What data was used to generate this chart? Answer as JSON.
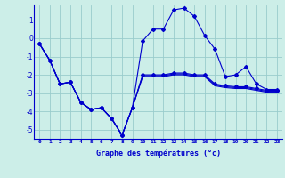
{
  "xlabel": "Graphe des températures (°c)",
  "bg_color": "#cceee8",
  "line_color": "#0000cc",
  "grid_color": "#99cccc",
  "ylim": [
    -5.5,
    1.8
  ],
  "xlim": [
    -0.5,
    23.5
  ],
  "yticks": [
    -5,
    -4,
    -3,
    -2,
    -1,
    0,
    1
  ],
  "xticks": [
    0,
    1,
    2,
    3,
    4,
    5,
    6,
    7,
    8,
    9,
    10,
    11,
    12,
    13,
    14,
    15,
    16,
    17,
    18,
    19,
    20,
    21,
    22,
    23
  ],
  "series_main_x": [
    0,
    1,
    2,
    3,
    4,
    5,
    6,
    7,
    8,
    9,
    10,
    11,
    12,
    13,
    14,
    15,
    16,
    17,
    18,
    19,
    20,
    21,
    22,
    23
  ],
  "series_main_y": [
    -0.3,
    -1.2,
    -2.5,
    -2.4,
    -3.5,
    -3.9,
    -3.8,
    -4.4,
    -5.3,
    -3.8,
    -0.15,
    0.5,
    0.5,
    1.55,
    1.65,
    1.2,
    0.15,
    -0.6,
    -2.1,
    -2.0,
    -1.55,
    -2.5,
    -2.8,
    -2.8
  ],
  "series_flat1_x": [
    0,
    1,
    2,
    3,
    4,
    5,
    6,
    7,
    8,
    9,
    10,
    11,
    12,
    13,
    14,
    15,
    16,
    17,
    18,
    19,
    20,
    21,
    22,
    23
  ],
  "series_flat1_y": [
    -0.3,
    -1.2,
    -2.5,
    -2.4,
    -3.5,
    -3.9,
    -3.8,
    -4.4,
    -5.3,
    -3.8,
    -2.0,
    -2.0,
    -2.0,
    -1.9,
    -1.9,
    -2.0,
    -2.0,
    -2.5,
    -2.6,
    -2.65,
    -2.65,
    -2.75,
    -2.85,
    -2.85
  ],
  "series_flat2_x": [
    0,
    1,
    2,
    3,
    4,
    5,
    6,
    7,
    8,
    9,
    10,
    11,
    12,
    13,
    14,
    15,
    16,
    17,
    18,
    19,
    20,
    21,
    22,
    23
  ],
  "series_flat2_y": [
    -0.3,
    -1.2,
    -2.5,
    -2.4,
    -3.5,
    -3.9,
    -3.8,
    -4.4,
    -5.3,
    -3.8,
    -2.05,
    -2.05,
    -2.05,
    -1.95,
    -1.95,
    -2.05,
    -2.05,
    -2.55,
    -2.65,
    -2.7,
    -2.7,
    -2.8,
    -2.9,
    -2.9
  ],
  "series_flat3_x": [
    0,
    1,
    2,
    3,
    4,
    5,
    6,
    7,
    8,
    9,
    10,
    11,
    12,
    13,
    14,
    15,
    16,
    17,
    18,
    19,
    20,
    21,
    22,
    23
  ],
  "series_flat3_y": [
    -0.3,
    -1.2,
    -2.5,
    -2.4,
    -3.5,
    -3.9,
    -3.8,
    -4.4,
    -5.3,
    -3.8,
    -2.1,
    -2.1,
    -2.1,
    -2.0,
    -2.0,
    -2.1,
    -2.1,
    -2.6,
    -2.7,
    -2.75,
    -2.75,
    -2.85,
    -2.95,
    -2.95
  ]
}
